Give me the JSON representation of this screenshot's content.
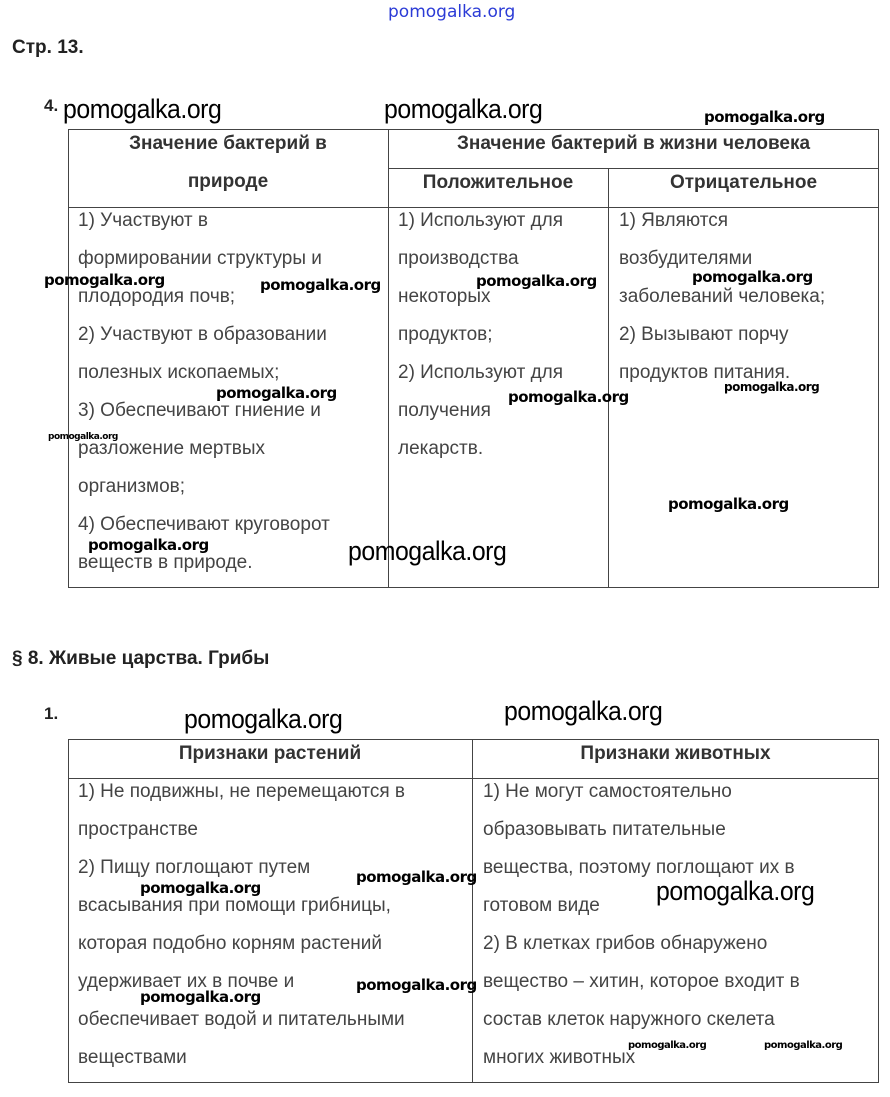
{
  "top_watermark": "pomogalka.org",
  "page_label": "Стр. 13.",
  "task4": {
    "number": "4.",
    "header_nature": [
      "Значение бактерий в",
      "природе"
    ],
    "header_human": "Значение бактерий в жизни человека",
    "header_positive": "Положительное",
    "header_negative": "Отрицательное",
    "nature_lines": [
      "1) Участвуют в",
      "формировании структуры и",
      "плодородия почв;",
      "2) Участвуют в образовании",
      "полезных ископаемых;",
      "3) Обеспечивают гниение и",
      "разложение мертвых",
      "организмов;",
      "4) Обеспечивают круговорот",
      "веществ в природе."
    ],
    "positive_lines": [
      "1) Используют для",
      "производства",
      "некоторых",
      "продуктов;",
      "2) Используют для",
      "получения",
      "лекарств."
    ],
    "negative_lines": [
      "1) Являются",
      "возбудителями",
      "заболеваний человека;",
      "2) Вызывают порчу",
      "продуктов питания."
    ]
  },
  "section_title": "§ 8. Живые царства. Грибы",
  "task1": {
    "number": "1.",
    "header_plants": "Признаки растений",
    "header_animals": "Признаки животных",
    "plants_lines": [
      "1) Не подвижны, не перемещаются в",
      "пространстве",
      "2) Пищу поглощают путем",
      "всасывания при помощи грибницы,",
      "которая подобно корням растений",
      "удерживает их в почве и",
      "обеспечивает водой и питательными",
      "веществами"
    ],
    "animals_lines": [
      "1) Не могут самостоятельно",
      "образовывать питательные",
      "вещества, поэтому поглощают их в",
      "готовом виде",
      "2) В клетках грибов обнаружено",
      "вещество – хитин, которое входит в",
      "состав клеток наружного скелета",
      "многих животных"
    ]
  },
  "watermark": "pomogalka.org"
}
